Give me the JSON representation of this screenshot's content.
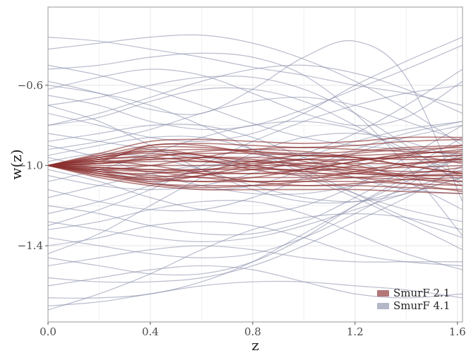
{
  "chart_data": {
    "type": "line",
    "xlabel": "z",
    "ylabel": "w(z)",
    "xlim": [
      0.0,
      1.62
    ],
    "ylim": [
      -1.78,
      -0.21
    ],
    "x_ticks": [
      "0.0",
      "0.4",
      "0.8",
      "1.2",
      "1.6"
    ],
    "x_tick_values": [
      0.0,
      0.4,
      0.8,
      1.2,
      1.6
    ],
    "y_ticks": [
      "-0.6",
      "-1.0",
      "-1.4"
    ],
    "y_tick_values": [
      -0.6,
      -1.0,
      -1.4
    ],
    "grid": true,
    "legend_position": "bottom-right",
    "x": [
      0.0,
      0.2,
      0.4,
      0.6,
      0.8,
      1.0,
      1.2,
      1.4,
      1.62
    ],
    "series": [
      {
        "name": "SmurF 2.1",
        "color": "#8b2e2e",
        "samples": [
          [
            -1.0,
            -0.94,
            -0.88,
            -0.87,
            -0.88,
            -0.89,
            -0.88,
            -0.86,
            -0.86
          ],
          [
            -1.0,
            -0.95,
            -0.9,
            -0.89,
            -0.9,
            -0.91,
            -0.9,
            -0.88,
            -0.87
          ],
          [
            -1.0,
            -0.96,
            -0.93,
            -0.92,
            -0.93,
            -0.94,
            -0.93,
            -0.91,
            -0.9
          ],
          [
            -1.0,
            -0.97,
            -0.95,
            -0.94,
            -0.94,
            -0.95,
            -0.95,
            -0.94,
            -0.93
          ],
          [
            -1.0,
            -0.98,
            -0.97,
            -0.96,
            -0.96,
            -0.97,
            -0.97,
            -0.96,
            -0.95
          ],
          [
            -1.0,
            -0.99,
            -0.98,
            -0.98,
            -0.98,
            -0.99,
            -0.99,
            -0.99,
            -0.98
          ],
          [
            -1.0,
            -1.0,
            -1.0,
            -1.0,
            -1.0,
            -1.0,
            -1.01,
            -1.01,
            -1.0
          ],
          [
            -1.0,
            -1.01,
            -1.02,
            -1.02,
            -1.02,
            -1.02,
            -1.02,
            -1.03,
            -1.03
          ],
          [
            -1.0,
            -1.02,
            -1.03,
            -1.04,
            -1.04,
            -1.04,
            -1.04,
            -1.05,
            -1.05
          ],
          [
            -1.0,
            -1.03,
            -1.05,
            -1.06,
            -1.06,
            -1.06,
            -1.06,
            -1.07,
            -1.08
          ],
          [
            -1.0,
            -1.04,
            -1.07,
            -1.08,
            -1.08,
            -1.08,
            -1.08,
            -1.09,
            -1.1
          ],
          [
            -1.0,
            -1.05,
            -1.09,
            -1.1,
            -1.1,
            -1.1,
            -1.1,
            -1.11,
            -1.12
          ],
          [
            -1.0,
            -1.06,
            -1.1,
            -1.12,
            -1.12,
            -1.12,
            -1.12,
            -1.13,
            -1.14
          ],
          [
            -1.0,
            -0.97,
            -0.92,
            -0.95,
            -1.0,
            -1.03,
            -1.0,
            -0.95,
            -0.92
          ],
          [
            -1.0,
            -1.03,
            -1.08,
            -1.05,
            -1.0,
            -0.97,
            -1.0,
            -1.05,
            -1.08
          ],
          [
            -1.0,
            -0.96,
            -0.94,
            -0.97,
            -1.02,
            -1.05,
            -1.04,
            -1.0,
            -0.96
          ],
          [
            -1.0,
            -1.04,
            -1.06,
            -1.03,
            -0.98,
            -0.95,
            -0.96,
            -1.0,
            -1.04
          ],
          [
            -1.0,
            -0.98,
            -0.9,
            -0.9,
            -0.94,
            -0.98,
            -1.02,
            -1.06,
            -1.1
          ],
          [
            -1.0,
            -1.02,
            -1.06,
            -1.08,
            -1.06,
            -1.02,
            -0.98,
            -0.94,
            -0.9
          ],
          [
            -1.0,
            -0.99,
            -0.96,
            -0.93,
            -0.92,
            -0.93,
            -0.96,
            -1.0,
            -1.04
          ],
          [
            -1.0,
            -1.01,
            -1.03,
            -1.06,
            -1.08,
            -1.07,
            -1.03,
            -0.99,
            -0.97
          ],
          [
            -1.0,
            -0.97,
            -0.96,
            -0.98,
            -0.99,
            -0.97,
            -0.94,
            -0.92,
            -0.91
          ],
          [
            -1.0,
            -1.03,
            -1.04,
            -1.02,
            -1.01,
            -1.03,
            -1.06,
            -1.09,
            -1.13
          ],
          [
            -1.0,
            -0.95,
            -0.93,
            -0.95,
            -0.98,
            -1.01,
            -1.04,
            -1.05,
            -1.05
          ],
          [
            -1.0,
            -1.05,
            -1.07,
            -1.05,
            -1.02,
            -0.99,
            -0.97,
            -0.96,
            -0.95
          ],
          [
            -1.0,
            -1.02,
            -1.0,
            -0.96,
            -0.92,
            -0.91,
            -0.92,
            -0.93,
            -0.94
          ],
          [
            -1.0,
            -0.98,
            -1.0,
            -1.04,
            -1.08,
            -1.1,
            -1.09,
            -1.07,
            -1.06
          ],
          [
            -1.0,
            -0.96,
            -0.91,
            -0.91,
            -0.93,
            -0.95,
            -0.96,
            -0.97,
            -0.97
          ],
          [
            -1.0,
            -1.04,
            -1.09,
            -1.11,
            -1.1,
            -1.08,
            -1.06,
            -1.05,
            -1.04
          ],
          [
            -1.0,
            -0.99,
            -0.97,
            -0.96,
            -0.97,
            -1.0,
            -1.03,
            -1.04,
            -1.01
          ],
          [
            -1.0,
            -1.01,
            -1.02,
            -1.03,
            -1.04,
            -1.02,
            -0.98,
            -0.95,
            -0.99
          ]
        ]
      },
      {
        "name": "SmurF 4.1",
        "color": "#8a90ab",
        "samples": [
          [
            -0.36,
            -0.38,
            -0.42,
            -0.46,
            -0.51,
            -0.55,
            -0.6,
            -0.64,
            -0.7
          ],
          [
            -0.42,
            -0.39,
            -0.36,
            -0.35,
            -0.39,
            -0.47,
            -0.58,
            -0.72,
            -0.9
          ],
          [
            -0.52,
            -0.5,
            -0.46,
            -0.44,
            -0.46,
            -0.55,
            -0.74,
            -1.0,
            -1.35
          ],
          [
            -0.58,
            -0.64,
            -0.72,
            -0.74,
            -0.62,
            -0.46,
            -0.38,
            -0.56,
            -1.18
          ],
          [
            -0.62,
            -0.56,
            -0.52,
            -0.55,
            -0.64,
            -0.74,
            -0.8,
            -0.76,
            -0.58
          ],
          [
            -0.65,
            -0.7,
            -0.78,
            -0.82,
            -0.8,
            -0.72,
            -0.62,
            -0.52,
            -0.4
          ],
          [
            -0.5,
            -0.55,
            -0.62,
            -0.7,
            -0.79,
            -0.86,
            -0.9,
            -0.92,
            -0.95
          ],
          [
            -0.7,
            -0.66,
            -0.6,
            -0.56,
            -0.56,
            -0.62,
            -0.74,
            -0.9,
            -1.1
          ],
          [
            -0.74,
            -0.8,
            -0.86,
            -0.88,
            -0.84,
            -0.74,
            -0.6,
            -0.48,
            -0.36
          ],
          [
            -0.8,
            -0.76,
            -0.68,
            -0.62,
            -0.62,
            -0.68,
            -0.8,
            -0.94,
            -1.08
          ],
          [
            -0.84,
            -0.88,
            -0.92,
            -0.96,
            -0.98,
            -0.94,
            -0.84,
            -0.7,
            -0.52
          ],
          [
            -0.88,
            -0.84,
            -0.8,
            -0.8,
            -0.86,
            -0.96,
            -1.06,
            -1.12,
            -1.14
          ],
          [
            -0.9,
            -0.96,
            -1.04,
            -1.1,
            -1.14,
            -1.14,
            -1.1,
            -1.04,
            -0.96
          ],
          [
            -0.92,
            -0.88,
            -0.82,
            -0.74,
            -0.68,
            -0.66,
            -0.7,
            -0.78,
            -0.88
          ],
          [
            -0.96,
            -1.02,
            -1.08,
            -1.12,
            -1.1,
            -1.02,
            -0.92,
            -0.84,
            -0.78
          ],
          [
            -1.08,
            -1.02,
            -0.94,
            -0.86,
            -0.8,
            -0.78,
            -0.82,
            -0.92,
            -1.06
          ],
          [
            -1.12,
            -1.18,
            -1.22,
            -1.22,
            -1.16,
            -1.06,
            -0.94,
            -0.86,
            -0.8
          ],
          [
            -1.16,
            -1.1,
            -1.04,
            -1.0,
            -1.0,
            -1.06,
            -1.16,
            -1.28,
            -1.42
          ],
          [
            -1.2,
            -1.24,
            -1.3,
            -1.34,
            -1.34,
            -1.28,
            -1.16,
            -1.02,
            -0.86
          ],
          [
            -1.24,
            -1.18,
            -1.1,
            -1.02,
            -0.96,
            -0.94,
            -0.98,
            -1.08,
            -1.22
          ],
          [
            -1.28,
            -1.32,
            -1.36,
            -1.38,
            -1.36,
            -1.3,
            -1.22,
            -1.14,
            -1.06
          ],
          [
            -1.32,
            -1.28,
            -1.22,
            -1.18,
            -1.18,
            -1.24,
            -1.34,
            -1.44,
            -1.52
          ],
          [
            -1.36,
            -1.4,
            -1.44,
            -1.46,
            -1.44,
            -1.36,
            -1.24,
            -1.1,
            -0.94
          ],
          [
            -1.4,
            -1.36,
            -1.3,
            -1.28,
            -1.3,
            -1.36,
            -1.44,
            -1.48,
            -1.5
          ],
          [
            -1.46,
            -1.5,
            -1.54,
            -1.54,
            -1.48,
            -1.36,
            -1.2,
            -1.06,
            -0.92
          ],
          [
            -1.5,
            -1.46,
            -1.42,
            -1.4,
            -1.42,
            -1.46,
            -1.48,
            -1.48,
            -1.48
          ],
          [
            -1.56,
            -1.58,
            -1.58,
            -1.56,
            -1.5,
            -1.4,
            -1.28,
            -1.16,
            -1.0
          ],
          [
            -1.6,
            -1.56,
            -1.52,
            -1.5,
            -1.52,
            -1.58,
            -1.64,
            -1.66,
            -1.64
          ],
          [
            -1.66,
            -1.66,
            -1.64,
            -1.58,
            -1.48,
            -1.34,
            -1.2,
            -1.08,
            -0.96
          ],
          [
            -1.7,
            -1.68,
            -1.64,
            -1.6,
            -1.58,
            -1.58,
            -1.6,
            -1.62,
            -1.66
          ],
          [
            -1.72,
            -1.64,
            -1.54,
            -1.42,
            -1.32,
            -1.26,
            -1.24,
            -1.26,
            -1.32
          ],
          [
            -0.95,
            -0.9,
            -0.86,
            -0.86,
            -0.92,
            -1.02,
            -1.14,
            -1.26,
            -1.36
          ],
          [
            -1.02,
            -1.08,
            -1.16,
            -1.22,
            -1.24,
            -1.2,
            -1.1,
            -0.96,
            -0.8
          ],
          [
            -0.6,
            -0.64,
            -0.7,
            -0.8,
            -0.92,
            -1.04,
            -1.14,
            -1.22,
            -1.28
          ],
          [
            -1.3,
            -1.22,
            -1.12,
            -1.0,
            -0.88,
            -0.78,
            -0.7,
            -0.64,
            -0.6
          ],
          [
            -0.8,
            -0.74,
            -0.66,
            -0.58,
            -0.52,
            -0.5,
            -0.54,
            -0.62,
            -0.74
          ],
          [
            -1.44,
            -1.34,
            -1.2,
            -1.06,
            -0.94,
            -0.86,
            -0.84,
            -0.88,
            -0.98
          ],
          [
            -0.7,
            -0.78,
            -0.9,
            -1.02,
            -1.12,
            -1.18,
            -1.18,
            -1.12,
            -1.02
          ],
          [
            -1.05,
            -1.1,
            -1.12,
            -1.1,
            -1.04,
            -0.96,
            -0.88,
            -0.82,
            -0.78
          ],
          [
            -0.98,
            -0.94,
            -0.96,
            -1.02,
            -1.1,
            -1.16,
            -1.18,
            -1.14,
            -1.06
          ]
        ]
      }
    ]
  }
}
